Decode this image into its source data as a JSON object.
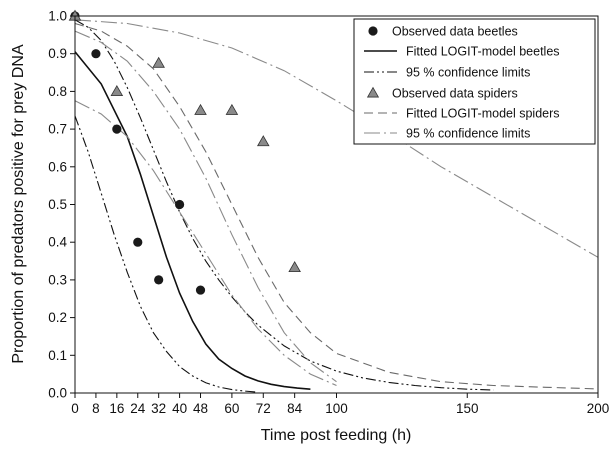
{
  "chart_data": {
    "type": "scatter",
    "xlabel": "Time post feeding (h)",
    "ylabel": "Proportion of predators positive for prey DNA",
    "xlim": [
      0,
      200
    ],
    "ylim": [
      0,
      1.0
    ],
    "xticks": [
      0,
      8,
      16,
      24,
      32,
      40,
      48,
      60,
      72,
      84,
      100,
      150,
      200
    ],
    "yticks": [
      0.0,
      0.1,
      0.2,
      0.3,
      0.4,
      0.5,
      0.6,
      0.7,
      0.8,
      0.9,
      1.0
    ],
    "grid": false,
    "legend_position": "top-right",
    "series": [
      {
        "name": "Observed data beetles",
        "kind": "points",
        "marker": "circle",
        "color": "#1a1a1a",
        "x": [
          0,
          8,
          16,
          24,
          32,
          40,
          48
        ],
        "y": [
          1.0,
          0.9,
          0.7,
          0.4,
          0.3,
          0.5,
          0.273
        ]
      },
      {
        "name": "Fitted LOGIT-model beetles",
        "kind": "line",
        "dash": "solid",
        "color": "#111111",
        "x": [
          0,
          10,
          20,
          25,
          30,
          35,
          40,
          45,
          50,
          55,
          60,
          65,
          70,
          75,
          80,
          85,
          90
        ],
        "y": [
          0.905,
          0.82,
          0.68,
          0.58,
          0.47,
          0.36,
          0.265,
          0.19,
          0.13,
          0.09,
          0.065,
          0.045,
          0.032,
          0.023,
          0.017,
          0.013,
          0.01
        ]
      },
      {
        "name": "95 % confidence limits",
        "kind": "line",
        "dash": "dash-dot-dot",
        "color": "#111111",
        "x": [
          0,
          5,
          10,
          15,
          20,
          25,
          30,
          35,
          40,
          45,
          50,
          55,
          60,
          65,
          70
        ],
        "y": [
          0.735,
          0.64,
          0.53,
          0.42,
          0.32,
          0.23,
          0.16,
          0.11,
          0.07,
          0.045,
          0.027,
          0.016,
          0.009,
          0.005,
          0.002
        ]
      },
      {
        "name": "",
        "kind": "line",
        "dash": "dash-dot-dot",
        "color": "#111111",
        "x": [
          0,
          5,
          10,
          15,
          20,
          25,
          30,
          35,
          40,
          45,
          50,
          55,
          60,
          65,
          70,
          80,
          90,
          100,
          110,
          120,
          130,
          140,
          150,
          160
        ],
        "y": [
          0.99,
          0.97,
          0.935,
          0.88,
          0.81,
          0.73,
          0.645,
          0.56,
          0.48,
          0.41,
          0.35,
          0.3,
          0.255,
          0.215,
          0.18,
          0.125,
          0.085,
          0.058,
          0.04,
          0.028,
          0.02,
          0.014,
          0.01,
          0.008
        ]
      },
      {
        "name": "Observed data spiders",
        "kind": "points",
        "marker": "triangle",
        "color": "#8a8a8a",
        "x": [
          0,
          16,
          32,
          48,
          60,
          72,
          84
        ],
        "y": [
          1.0,
          0.8,
          0.875,
          0.75,
          0.75,
          0.667,
          0.333
        ]
      },
      {
        "name": "Fitted LOGIT-model spiders",
        "kind": "line",
        "dash": "dashed",
        "color": "#6a6a6a",
        "x": [
          0,
          10,
          20,
          30,
          40,
          50,
          60,
          70,
          80,
          90,
          100,
          120,
          140,
          160,
          180,
          200
        ],
        "y": [
          0.98,
          0.96,
          0.92,
          0.86,
          0.76,
          0.64,
          0.5,
          0.36,
          0.24,
          0.16,
          0.105,
          0.055,
          0.03,
          0.02,
          0.015,
          0.011
        ]
      },
      {
        "name": "95 % confidence limits",
        "kind": "line",
        "dash": "long-dash-dot",
        "color": "#8a8a8a",
        "x": [
          0,
          10,
          20,
          30,
          40,
          50,
          60,
          70,
          80,
          90,
          100
        ],
        "y": [
          0.96,
          0.93,
          0.88,
          0.8,
          0.7,
          0.57,
          0.42,
          0.28,
          0.16,
          0.08,
          0.03
        ]
      },
      {
        "name": "",
        "kind": "line",
        "dash": "long-dash-dot",
        "color": "#8a8a8a",
        "x": [
          0,
          20,
          40,
          60,
          80,
          100,
          120,
          140,
          160,
          180,
          200
        ],
        "y": [
          0.99,
          0.98,
          0.955,
          0.915,
          0.855,
          0.775,
          0.69,
          0.6,
          0.52,
          0.44,
          0.36
        ]
      },
      {
        "name": "",
        "kind": "line",
        "dash": "long-dash-dot",
        "color": "#8a8a8a",
        "x": [
          0,
          10,
          20,
          30,
          40,
          50,
          60,
          70,
          80,
          90,
          100
        ],
        "y": [
          0.775,
          0.74,
          0.68,
          0.59,
          0.48,
          0.37,
          0.26,
          0.17,
          0.1,
          0.05,
          0.02
        ]
      }
    ],
    "legend": [
      {
        "label": "Observed data beetles",
        "symbol": "circle",
        "color": "#1a1a1a"
      },
      {
        "label": "Fitted LOGIT-model beetles",
        "symbol": "solid",
        "color": "#111111"
      },
      {
        "label": "95 % confidence limits",
        "symbol": "dash-dot-dot",
        "color": "#111111"
      },
      {
        "label": "Observed data spiders",
        "symbol": "triangle",
        "color": "#8a8a8a"
      },
      {
        "label": "Fitted LOGIT-model spiders",
        "symbol": "dashed",
        "color": "#6a6a6a"
      },
      {
        "label": "95 % confidence limits",
        "symbol": "long-dash-dot",
        "color": "#8a8a8a"
      }
    ]
  }
}
